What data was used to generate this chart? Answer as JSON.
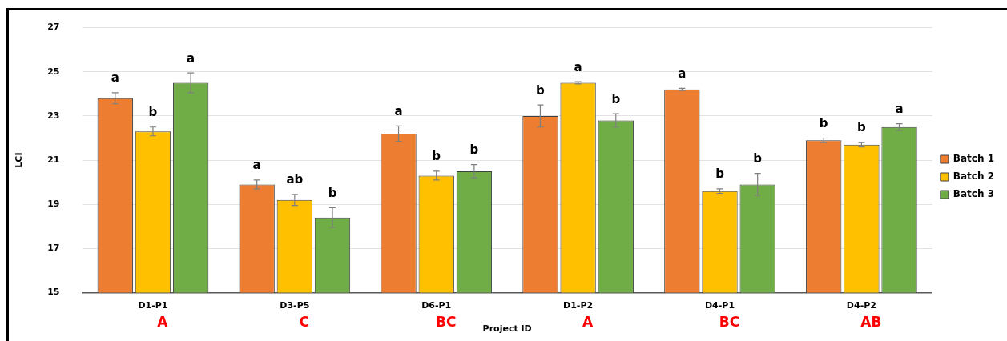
{
  "chart_data": {
    "type": "bar",
    "categories": [
      "D1-P1",
      "D3-P5",
      "D6-P1",
      "D1-P2",
      "D4-P1",
      "D4-P2"
    ],
    "series": [
      {
        "name": "Batch 1",
        "color": "#ed7d31",
        "values": [
          23.8,
          19.9,
          22.2,
          23.0,
          24.2,
          21.9
        ],
        "errors": [
          0.25,
          0.2,
          0.35,
          0.5,
          0.05,
          0.1
        ],
        "value_labels": [
          "a",
          "a",
          "a",
          "b",
          "a",
          "b"
        ]
      },
      {
        "name": "Batch 2",
        "color": "#ffc000",
        "values": [
          22.3,
          19.2,
          20.3,
          24.5,
          19.6,
          21.7
        ],
        "errors": [
          0.2,
          0.25,
          0.2,
          0.05,
          0.1,
          0.1
        ],
        "value_labels": [
          "b",
          "ab",
          "b",
          "a",
          "b",
          "b"
        ]
      },
      {
        "name": "Batch 3",
        "color": "#70ad47",
        "values": [
          24.5,
          18.4,
          20.5,
          22.8,
          19.9,
          22.5
        ],
        "errors": [
          0.45,
          0.45,
          0.3,
          0.3,
          0.5,
          0.15
        ],
        "value_labels": [
          "a",
          "b",
          "b",
          "b",
          "b",
          "a"
        ]
      }
    ],
    "xlabel": "Project ID",
    "ylabel": "LCI",
    "ylim": [
      15,
      27
    ],
    "yticks": [
      15,
      17,
      19,
      21,
      23,
      25,
      27
    ],
    "grid": "y",
    "legend": "right",
    "annotations": [
      "A",
      "C",
      "BC",
      "A",
      "BC",
      "AB"
    ]
  }
}
